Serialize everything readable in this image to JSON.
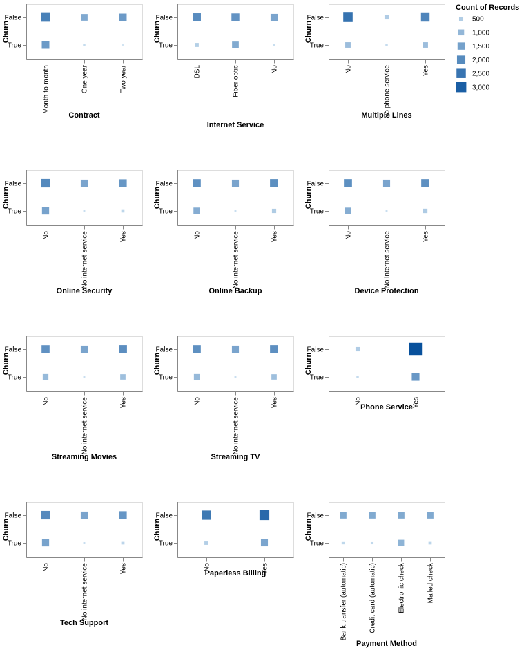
{
  "chart_data": {
    "type": "heatmap",
    "mark": "square",
    "encoding": "size and color both encode Count of Records",
    "y_axis_title": "Churn",
    "y_categories": [
      "False",
      "True"
    ],
    "legend": {
      "title": "Count of Records",
      "values": [
        500,
        1000,
        1500,
        2000,
        2500,
        3000
      ],
      "labels": [
        "500",
        "1,000",
        "1,500",
        "2,000",
        "2,500",
        "3,000"
      ],
      "domain": [
        0,
        3300
      ],
      "color_range": [
        "#cfe3f2",
        "#08519c"
      ]
    },
    "panels": [
      {
        "title": "Contract",
        "categories": [
          "Month-to-month",
          "One year",
          "Two year"
        ],
        "counts": {
          "False": [
            2220,
            1307,
            1647
          ],
          "True": [
            1655,
            166,
            48
          ]
        }
      },
      {
        "title": "Internet Service",
        "categories": [
          "DSL",
          "Fiber optic",
          "No"
        ],
        "counts": {
          "False": [
            1962,
            1799,
            1413
          ],
          "True": [
            459,
            1297,
            113
          ]
        }
      },
      {
        "title": "Multiple Lines",
        "categories": [
          "No",
          "No phone service",
          "Yes"
        ],
        "counts": {
          "False": [
            2541,
            512,
            2121
          ],
          "True": [
            849,
            170,
            850
          ]
        }
      },
      {
        "title": "Online Security",
        "categories": [
          "No",
          "No internet service",
          "Yes"
        ],
        "counts": {
          "False": [
            2037,
            1413,
            1724
          ],
          "True": [
            1461,
            113,
            295
          ]
        }
      },
      {
        "title": "Online Backup",
        "categories": [
          "No",
          "No internet service",
          "Yes"
        ],
        "counts": {
          "False": [
            1855,
            1413,
            1906
          ],
          "True": [
            1233,
            113,
            523
          ]
        }
      },
      {
        "title": "Device Protection",
        "categories": [
          "No",
          "No internet service",
          "Yes"
        ],
        "counts": {
          "False": [
            1884,
            1413,
            1877
          ],
          "True": [
            1211,
            113,
            545
          ]
        }
      },
      {
        "title": "Streaming Movies",
        "categories": [
          "No",
          "No internet service",
          "Yes"
        ],
        "counts": {
          "False": [
            1847,
            1413,
            1914
          ],
          "True": [
            938,
            113,
            818
          ]
        }
      },
      {
        "title": "Streaming TV",
        "categories": [
          "No",
          "No internet service",
          "Yes"
        ],
        "counts": {
          "False": [
            1868,
            1413,
            1893
          ],
          "True": [
            942,
            113,
            814
          ]
        }
      },
      {
        "title": "Phone Service",
        "categories": [
          "No",
          "Yes"
        ],
        "counts": {
          "False": [
            512,
            4662
          ],
          "True": [
            170,
            1699
          ]
        }
      },
      {
        "title": "Tech Support",
        "categories": [
          "No",
          "No internet service",
          "Yes"
        ],
        "counts": {
          "False": [
            2027,
            1413,
            1734
          ],
          "True": [
            1446,
            113,
            310
          ]
        }
      },
      {
        "title": "Paperless Billing",
        "categories": [
          "No",
          "Yes"
        ],
        "counts": {
          "False": [
            2403,
            2771
          ],
          "True": [
            469,
            1400
          ]
        }
      },
      {
        "title": "Payment Method",
        "categories": [
          "Bank transfer (automatic)",
          "Credit card (automatic)",
          "Electronic check",
          "Mailed check"
        ],
        "counts": {
          "False": [
            1286,
            1290,
            1294,
            1304
          ],
          "True": [
            258,
            232,
            1071,
            308
          ]
        }
      }
    ]
  }
}
